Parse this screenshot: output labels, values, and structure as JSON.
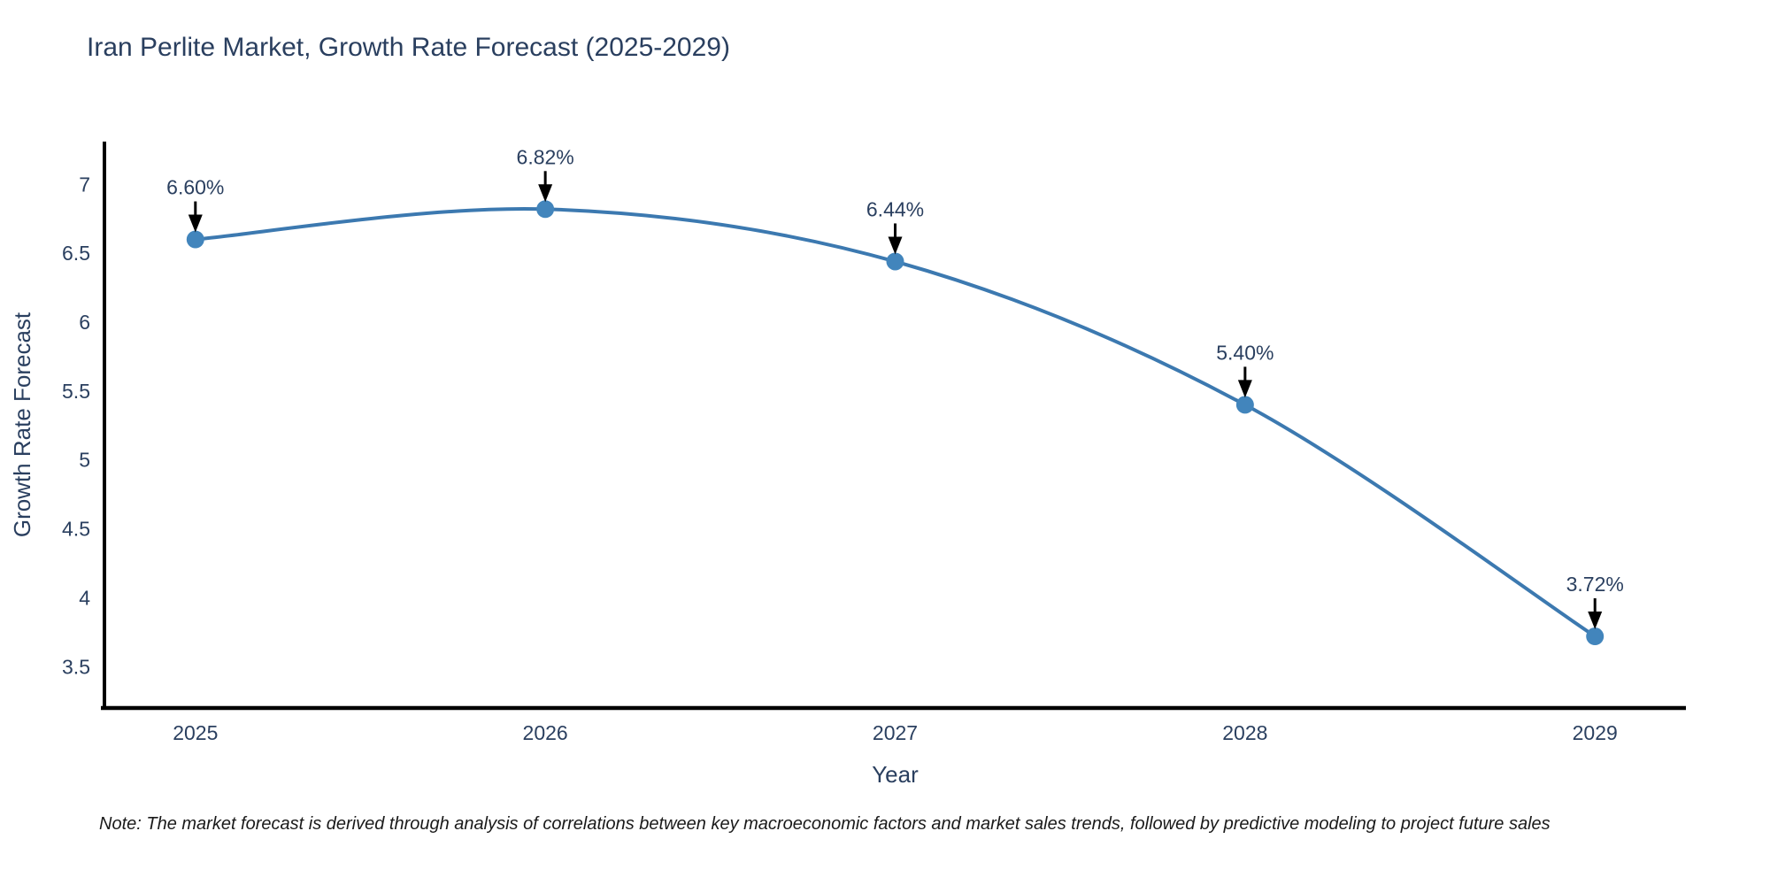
{
  "title": {
    "text": "Iran Perlite Market, Growth Rate Forecast (2025-2029)"
  },
  "note": {
    "text": "Note: The market forecast is derived through analysis of correlations between key macroeconomic factors and market sales trends, followed by predictive modeling to project future sales"
  },
  "chart_data": {
    "type": "line",
    "title": "Iran Perlite Market, Growth Rate Forecast (2025-2029)",
    "x": [
      2025,
      2026,
      2027,
      2028,
      2029
    ],
    "xtick_labels": [
      "2025",
      "2026",
      "2027",
      "2028",
      "2029"
    ],
    "series": [
      {
        "name": "Growth Rate Forecast",
        "values": [
          6.6,
          6.82,
          6.44,
          5.4,
          3.72
        ],
        "point_labels": [
          "6.60%",
          "6.82%",
          "6.44%",
          "5.40%",
          "3.72%"
        ]
      }
    ],
    "xlabel": "Year",
    "ylabel": "Growth Rate Forecast",
    "yticks": [
      3.5,
      4,
      4.5,
      5,
      5.5,
      6,
      6.5,
      7
    ],
    "ytick_labels": [
      "3.5",
      "4",
      "4.5",
      "5",
      "5.5",
      "6",
      "6.5",
      "7"
    ],
    "xlim": [
      2024.74,
      2029.26
    ],
    "ylim": [
      3.2,
      7.31
    ],
    "line_shape": "spline",
    "grid": false,
    "legend_position": "none",
    "annotation_style": "arrow-down-to-point",
    "colors": {
      "line": "#3c79b0",
      "marker": "#4285bc",
      "axis": "#000000",
      "text": "#2a3f5f",
      "annotation_arrow": "#000000",
      "note_text": "#1a1a1a",
      "background": "#ffffff"
    }
  }
}
